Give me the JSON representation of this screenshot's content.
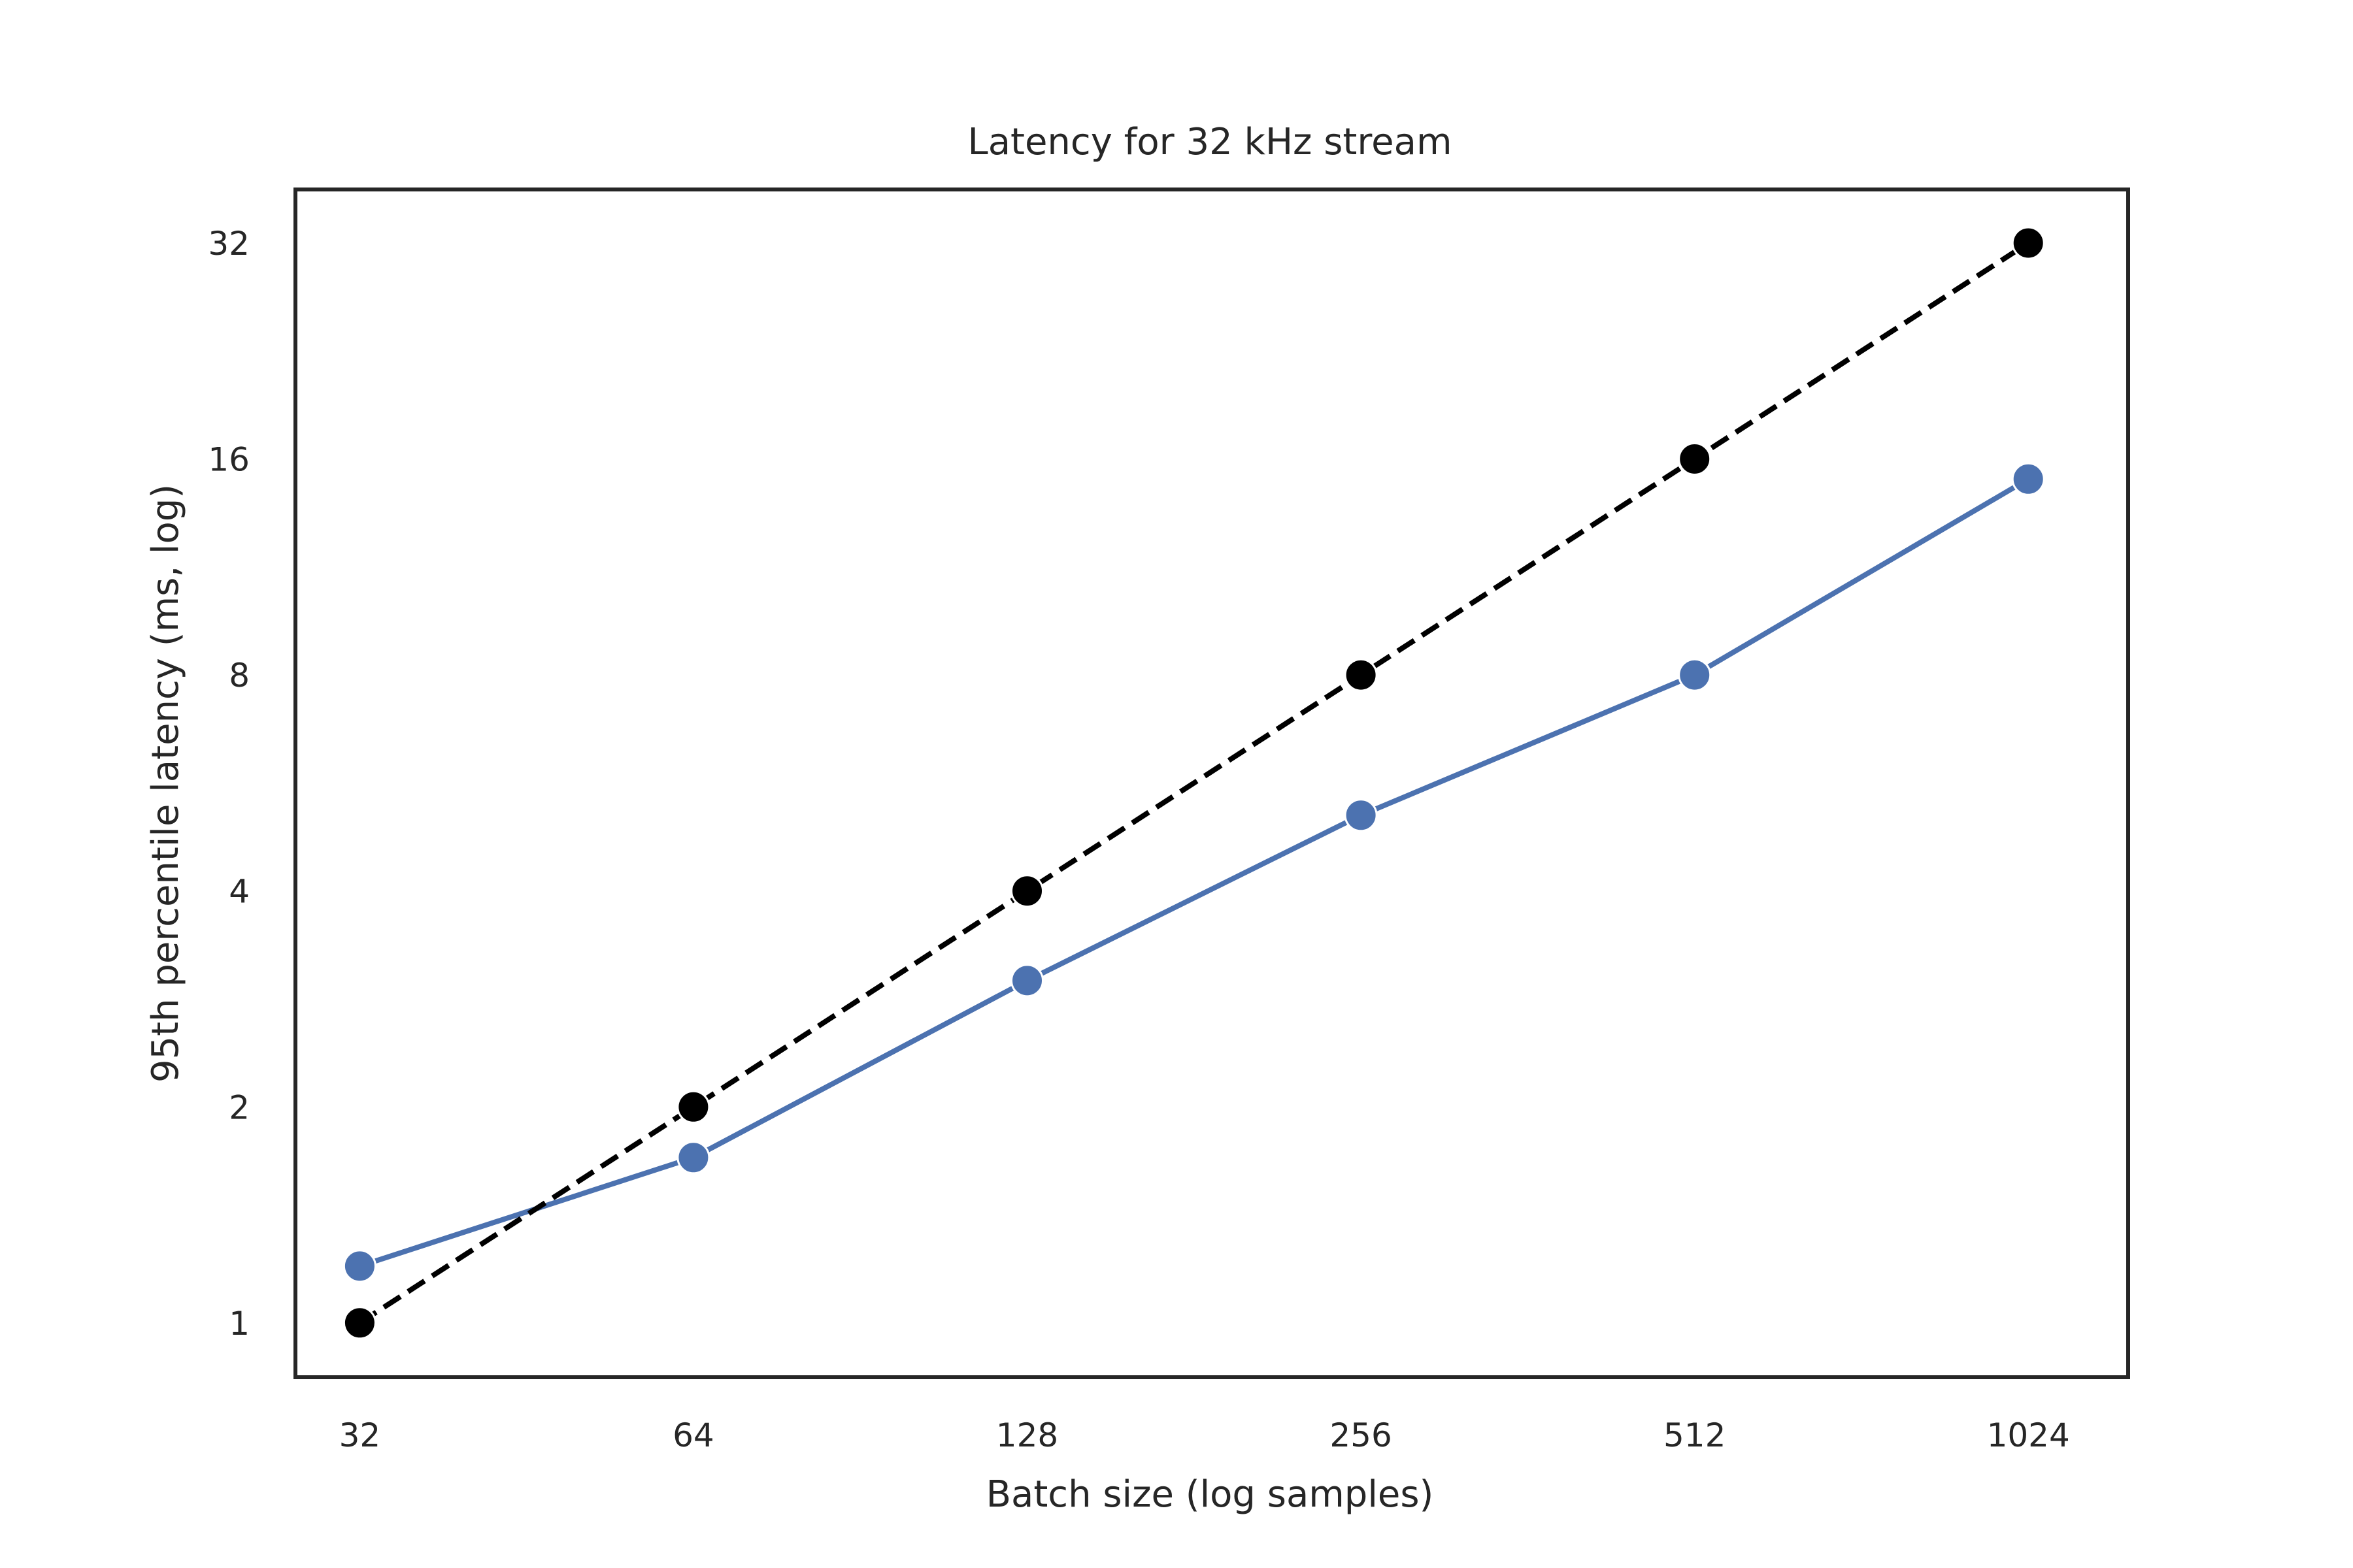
{
  "chart_data": {
    "type": "line",
    "title": "Latency for 32 kHz stream",
    "xlabel": "Batch size (log samples)",
    "ylabel": "95th percentile latency (ms, log)",
    "x_scale": "log2",
    "y_scale": "log2",
    "x": [
      32,
      64,
      128,
      256,
      512,
      1024
    ],
    "x_tick_labels": [
      "32",
      "64",
      "128",
      "256",
      "512",
      "1024"
    ],
    "y_tick_values": [
      1,
      2,
      4,
      8,
      16,
      32
    ],
    "y_tick_labels": [
      "1",
      "2",
      "4",
      "8",
      "16",
      "32"
    ],
    "xlim": [
      28,
      1260
    ],
    "ylim": [
      0.84,
      38
    ],
    "grid": false,
    "legend": "none",
    "series": [
      {
        "color": "#4c72b0",
        "line_style": "solid",
        "marker": "circle",
        "values": [
          1.2,
          1.7,
          3.0,
          5.1,
          8.0,
          15.0
        ]
      },
      {
        "color": "#000000",
        "line_style": "dashed",
        "marker": "circle",
        "values": [
          1,
          2,
          4,
          8,
          16,
          32
        ]
      }
    ]
  }
}
